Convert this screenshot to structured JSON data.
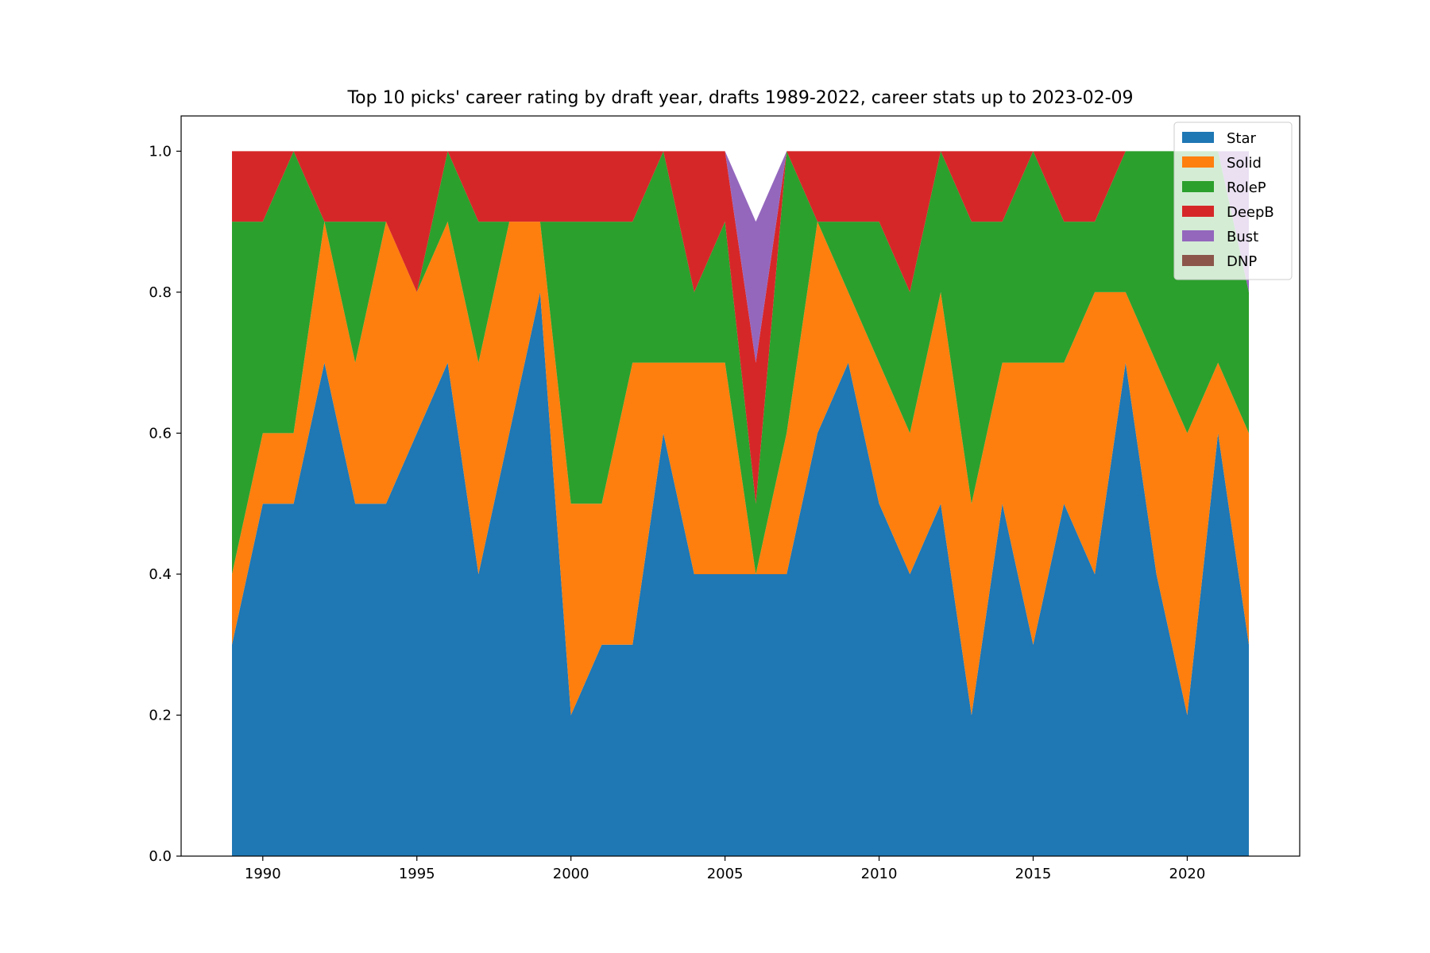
{
  "chart_data": {
    "type": "area",
    "stacked": true,
    "title": "Top 10 picks' career rating by draft year, drafts 1989-2022, career stats up to 2023-02-09",
    "xlabel": "",
    "ylabel": "",
    "x": [
      1989,
      1990,
      1991,
      1992,
      1993,
      1994,
      1995,
      1996,
      1997,
      1998,
      1999,
      2000,
      2001,
      2002,
      2003,
      2004,
      2005,
      2006,
      2007,
      2008,
      2009,
      2010,
      2011,
      2012,
      2013,
      2014,
      2015,
      2016,
      2017,
      2018,
      2019,
      2020,
      2021,
      2022
    ],
    "xlim": [
      1987.35,
      2023.65
    ],
    "ylim": [
      0,
      1.05
    ],
    "x_ticks": [
      1990,
      1995,
      2000,
      2005,
      2010,
      2015,
      2020
    ],
    "x_tick_labels": [
      "1990",
      "1995",
      "2000",
      "2005",
      "2010",
      "2015",
      "2020"
    ],
    "y_ticks": [
      0.0,
      0.2,
      0.4,
      0.6,
      0.8,
      1.0
    ],
    "y_tick_labels": [
      "0.0",
      "0.2",
      "0.4",
      "0.6",
      "0.8",
      "1.0"
    ],
    "legend_position": "top-right",
    "grid": false,
    "series": [
      {
        "name": "Star",
        "color": "#1f77b4",
        "values": [
          0.3,
          0.5,
          0.5,
          0.7,
          0.5,
          0.5,
          0.6,
          0.7,
          0.4,
          0.6,
          0.8,
          0.2,
          0.3,
          0.3,
          0.6,
          0.4,
          0.4,
          0.4,
          0.4,
          0.6,
          0.7,
          0.5,
          0.4,
          0.5,
          0.2,
          0.5,
          0.3,
          0.5,
          0.4,
          0.7,
          0.4,
          0.2,
          0.6,
          0.3
        ]
      },
      {
        "name": "Solid",
        "color": "#ff7f0e",
        "values": [
          0.1,
          0.1,
          0.1,
          0.2,
          0.2,
          0.4,
          0.2,
          0.2,
          0.3,
          0.3,
          0.1,
          0.3,
          0.2,
          0.4,
          0.1,
          0.3,
          0.3,
          0.0,
          0.2,
          0.3,
          0.1,
          0.2,
          0.2,
          0.3,
          0.3,
          0.2,
          0.4,
          0.2,
          0.4,
          0.1,
          0.3,
          0.4,
          0.1,
          0.3
        ]
      },
      {
        "name": "RoleP",
        "color": "#2ca02c",
        "values": [
          0.5,
          0.3,
          0.4,
          0.0,
          0.2,
          0.0,
          0.0,
          0.1,
          0.2,
          0.0,
          0.0,
          0.4,
          0.4,
          0.2,
          0.3,
          0.1,
          0.2,
          0.1,
          0.4,
          0.0,
          0.1,
          0.2,
          0.2,
          0.2,
          0.4,
          0.2,
          0.3,
          0.2,
          0.1,
          0.2,
          0.3,
          0.4,
          0.3,
          0.2
        ]
      },
      {
        "name": "DeepB",
        "color": "#d62728",
        "values": [
          0.1,
          0.1,
          0.0,
          0.1,
          0.1,
          0.1,
          0.2,
          0.0,
          0.1,
          0.1,
          0.1,
          0.1,
          0.1,
          0.1,
          0.0,
          0.2,
          0.1,
          0.2,
          0.0,
          0.1,
          0.1,
          0.1,
          0.2,
          0.0,
          0.1,
          0.1,
          0.0,
          0.1,
          0.1,
          0.0,
          0.0,
          0.0,
          0.0,
          0.0
        ]
      },
      {
        "name": "Bust",
        "color": "#9467bd",
        "values": [
          0.0,
          0.0,
          0.0,
          0.0,
          0.0,
          0.0,
          0.0,
          0.0,
          0.0,
          0.0,
          0.0,
          0.0,
          0.0,
          0.0,
          0.0,
          0.0,
          0.0,
          0.2,
          0.0,
          0.0,
          0.0,
          0.0,
          0.0,
          0.0,
          0.0,
          0.0,
          0.0,
          0.0,
          0.0,
          0.0,
          0.0,
          0.0,
          0.0,
          0.2
        ]
      },
      {
        "name": "DNP",
        "color": "#8c564b",
        "values": [
          0.0,
          0.0,
          0.0,
          0.0,
          0.0,
          0.0,
          0.0,
          0.0,
          0.0,
          0.0,
          0.0,
          0.0,
          0.0,
          0.0,
          0.0,
          0.0,
          0.0,
          0.0,
          0.0,
          0.0,
          0.0,
          0.0,
          0.0,
          0.0,
          0.0,
          0.0,
          0.0,
          0.0,
          0.0,
          0.0,
          0.0,
          0.0,
          0.0,
          0.0
        ]
      }
    ]
  }
}
